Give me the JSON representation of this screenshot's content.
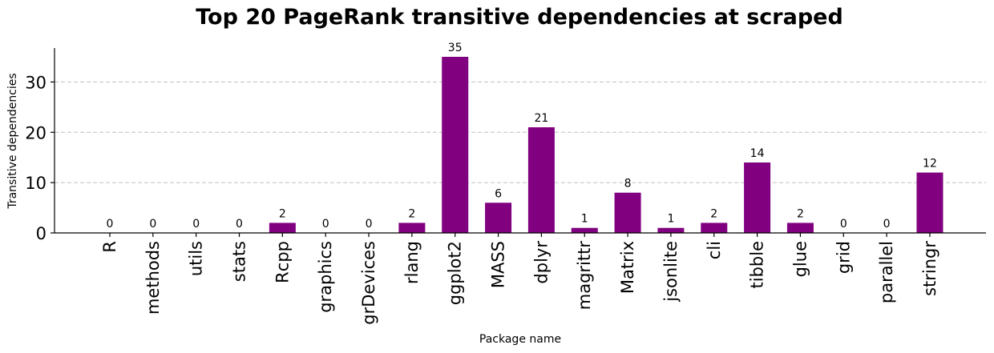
{
  "chart_data": {
    "type": "bar",
    "title": "Top 20 PageRank transitive dependencies at scraped",
    "xlabel": "Package name",
    "ylabel": "Transitive dependencies",
    "categories": [
      "R",
      "methods",
      "utils",
      "stats",
      "Rcpp",
      "graphics",
      "grDevices",
      "rlang",
      "ggplot2",
      "MASS",
      "dplyr",
      "magrittr",
      "Matrix",
      "jsonlite",
      "cli",
      "tibble",
      "glue",
      "grid",
      "parallel",
      "stringr"
    ],
    "values": [
      0,
      0,
      0,
      0,
      2,
      0,
      0,
      2,
      35,
      6,
      21,
      1,
      8,
      1,
      2,
      14,
      2,
      0,
      0,
      12
    ],
    "data_labels": [
      "0",
      "0",
      "0",
      "0",
      "2",
      "0",
      "0",
      "2",
      "35",
      "6",
      "21",
      "1",
      "8",
      "1",
      "2",
      "14",
      "2",
      "0",
      "0",
      "12"
    ],
    "yticks": [
      0,
      10,
      20,
      30
    ],
    "ylim": [
      0,
      36.75
    ],
    "grid": "y-dashed",
    "bar_color": "#800080",
    "grid_color": "#c0c0c0"
  }
}
